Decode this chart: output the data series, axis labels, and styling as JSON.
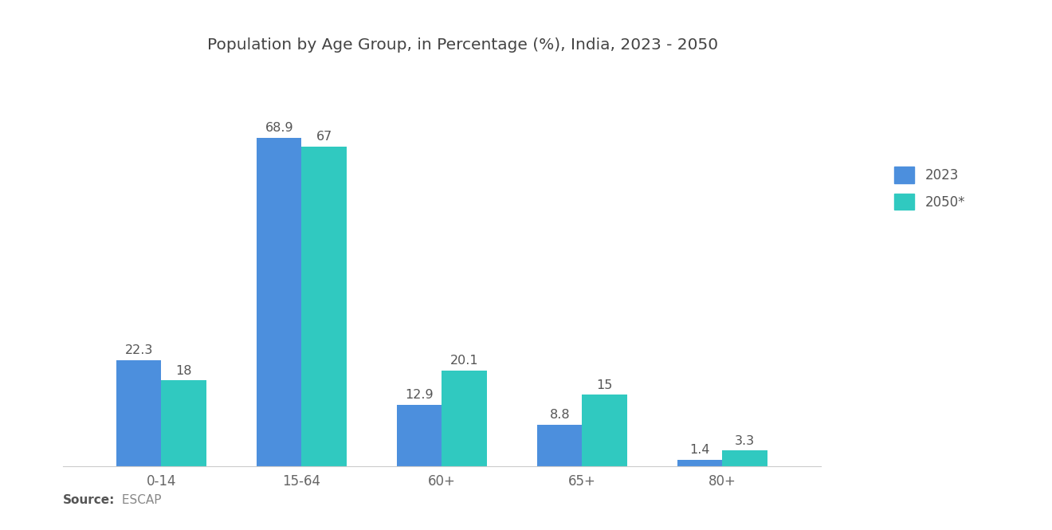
{
  "title": "Population by Age Group, in Percentage (%), India, 2023 - 2050",
  "categories": [
    "0-14",
    "15-64",
    "60+",
    "65+",
    "80+"
  ],
  "values_2023": [
    22.3,
    68.9,
    12.9,
    8.8,
    1.4
  ],
  "values_2050": [
    18,
    67,
    20.1,
    15,
    3.3
  ],
  "color_2023": "#4C8FDD",
  "color_2050": "#30C9C0",
  "legend_2023": "2023",
  "legend_2050": "2050*",
  "source_label": "Source:",
  "source_value": " ESCAP",
  "ylim": [
    0,
    80
  ],
  "bar_width": 0.32,
  "background_color": "#ffffff",
  "title_fontsize": 14.5,
  "label_fontsize": 11.5,
  "tick_fontsize": 12,
  "legend_fontsize": 12
}
